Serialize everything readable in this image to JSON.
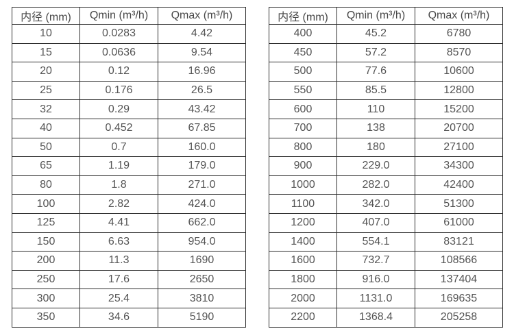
{
  "colors": {
    "background": "#ffffff",
    "table_border": "#2b2b2b",
    "header_text": "#474747",
    "cell_text": "#545454"
  },
  "tables": [
    {
      "headers": [
        "内径 (mm)",
        "Qmin (m³/h)",
        "Qmax (m³/h)"
      ],
      "rows": [
        [
          "10",
          "0.0283",
          "4.42"
        ],
        [
          "15",
          "0.0636",
          "9.54"
        ],
        [
          "20",
          "0.12",
          "16.96"
        ],
        [
          "25",
          "0.176",
          "26.5"
        ],
        [
          "32",
          "0.29",
          "43.42"
        ],
        [
          "40",
          "0.452",
          "67.85"
        ],
        [
          "50",
          "0.7",
          "160.0"
        ],
        [
          "65",
          "1.19",
          "179.0"
        ],
        [
          "80",
          "1.8",
          "271.0"
        ],
        [
          "100",
          "2.82",
          "424.0"
        ],
        [
          "125",
          "4.41",
          "662.0"
        ],
        [
          "150",
          "6.63",
          "954.0"
        ],
        [
          "200",
          "11.3",
          "1690"
        ],
        [
          "250",
          "17.6",
          "2650"
        ],
        [
          "300",
          "25.4",
          "3810"
        ],
        [
          "350",
          "34.6",
          "5190"
        ]
      ]
    },
    {
      "headers": [
        "内径 (mm)",
        "Qmin (m³/h)",
        "Qmax (m³/h)"
      ],
      "rows": [
        [
          "400",
          "45.2",
          "6780"
        ],
        [
          "450",
          "57.2",
          "8570"
        ],
        [
          "500",
          "77.6",
          "10600"
        ],
        [
          "550",
          "85.5",
          "12800"
        ],
        [
          "600",
          "110",
          "15200"
        ],
        [
          "700",
          "138",
          "20700"
        ],
        [
          "800",
          "180",
          "27100"
        ],
        [
          "900",
          "229.0",
          "34300"
        ],
        [
          "1000",
          "282.0",
          "42400"
        ],
        [
          "1100",
          "342.0",
          "51300"
        ],
        [
          "1200",
          "407.0",
          "61000"
        ],
        [
          "1400",
          "554.1",
          "83121"
        ],
        [
          "1600",
          "732.7",
          "108566"
        ],
        [
          "1800",
          "916.0",
          "137404"
        ],
        [
          "2000",
          "1131.0",
          "169635"
        ],
        [
          "2200",
          "1368.4",
          "205258"
        ]
      ]
    }
  ]
}
